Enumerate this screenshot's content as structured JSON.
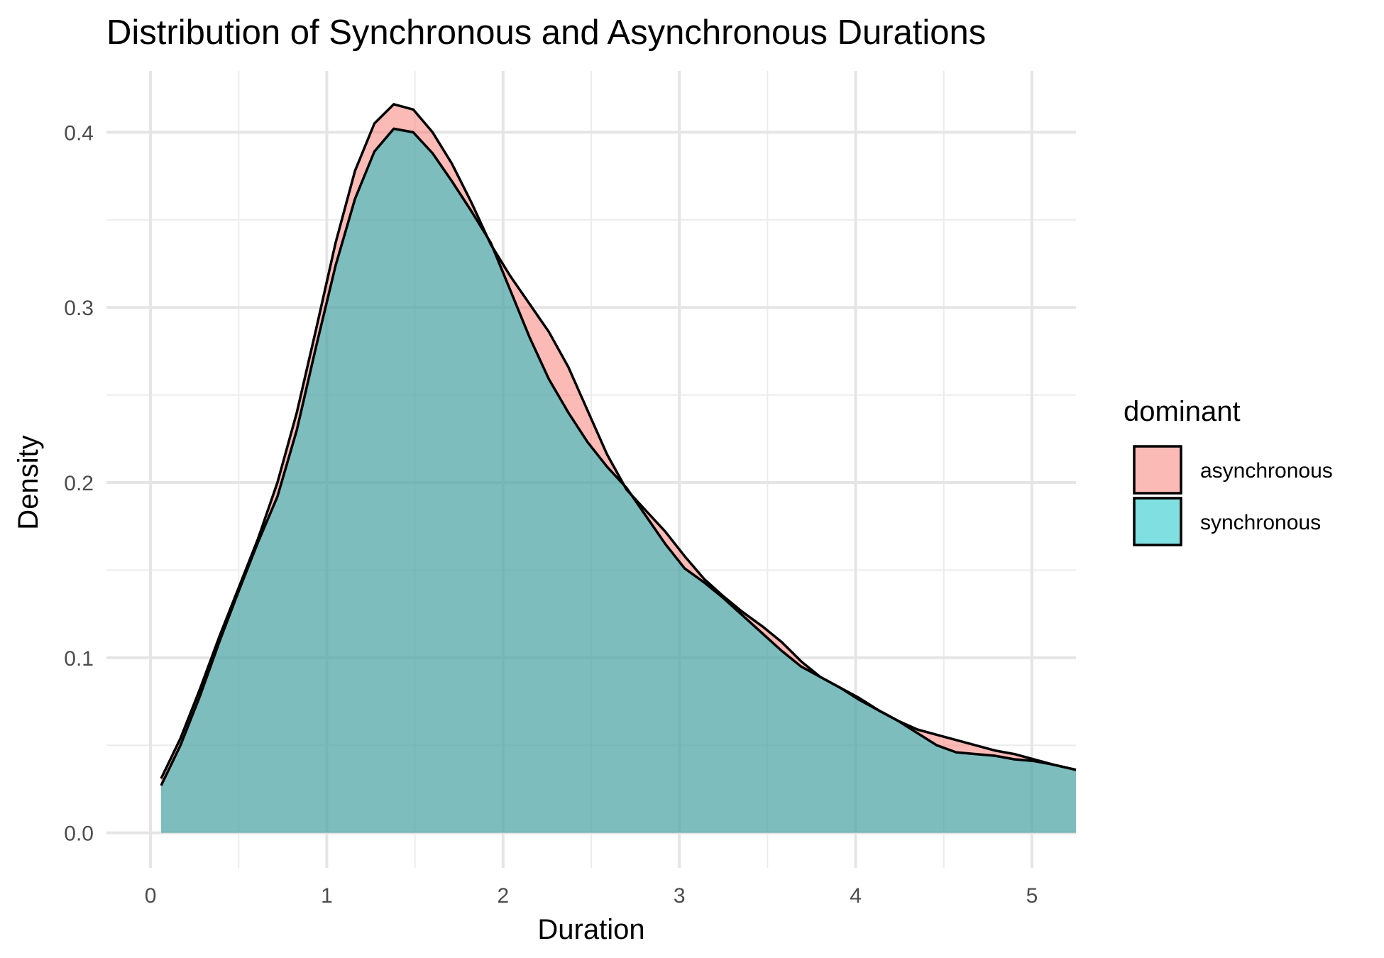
{
  "chart_data": {
    "type": "area",
    "title": "Distribution of Synchronous and Asynchronous Durations",
    "xlabel": "Duration",
    "ylabel": "Density",
    "xlim": [
      -0.25,
      5.25
    ],
    "ylim": [
      -0.02,
      0.435
    ],
    "x_ticks": [
      0,
      1,
      2,
      3,
      4,
      5
    ],
    "x_tick_labels": [
      "0",
      "1",
      "2",
      "3",
      "4",
      "5"
    ],
    "y_ticks": [
      0.0,
      0.1,
      0.2,
      0.3,
      0.4
    ],
    "y_tick_labels": [
      "0.0",
      "0.1",
      "0.2",
      "0.3",
      "0.4"
    ],
    "grid": true,
    "legend": {
      "title": "dominant",
      "placement": "right"
    },
    "series": [
      {
        "name": "asynchronous",
        "color": "#F8766D",
        "x": [
          0.06,
          0.17,
          0.28,
          0.39,
          0.5,
          0.61,
          0.72,
          0.83,
          0.94,
          1.05,
          1.16,
          1.27,
          1.38,
          1.49,
          1.6,
          1.71,
          1.82,
          1.93,
          2.04,
          2.15,
          2.26,
          2.37,
          2.48,
          2.59,
          2.7,
          2.81,
          2.92,
          3.03,
          3.14,
          3.25,
          3.36,
          3.47,
          3.58,
          3.69,
          3.8,
          3.91,
          4.02,
          4.13,
          4.24,
          4.35,
          4.46,
          4.57,
          4.68,
          4.79,
          4.9,
          5.01,
          5.12,
          5.25
        ],
        "values": [
          0.031,
          0.054,
          0.082,
          0.112,
          0.14,
          0.168,
          0.2,
          0.24,
          0.288,
          0.337,
          0.378,
          0.405,
          0.416,
          0.413,
          0.4,
          0.382,
          0.36,
          0.336,
          0.318,
          0.302,
          0.286,
          0.266,
          0.241,
          0.216,
          0.196,
          0.184,
          0.172,
          0.158,
          0.145,
          0.135,
          0.126,
          0.118,
          0.109,
          0.098,
          0.089,
          0.083,
          0.077,
          0.07,
          0.064,
          0.059,
          0.056,
          0.053,
          0.05,
          0.047,
          0.045,
          0.042,
          0.039,
          0.036
        ]
      },
      {
        "name": "synchronous",
        "color": "#00BFC4",
        "x": [
          0.06,
          0.17,
          0.28,
          0.39,
          0.5,
          0.61,
          0.72,
          0.83,
          0.94,
          1.05,
          1.16,
          1.27,
          1.38,
          1.49,
          1.6,
          1.71,
          1.82,
          1.93,
          2.04,
          2.15,
          2.26,
          2.37,
          2.48,
          2.59,
          2.7,
          2.81,
          2.92,
          3.03,
          3.14,
          3.25,
          3.36,
          3.47,
          3.58,
          3.69,
          3.8,
          3.91,
          4.02,
          4.13,
          4.24,
          4.35,
          4.46,
          4.57,
          4.68,
          4.79,
          4.9,
          5.01,
          5.12,
          5.25
        ],
        "values": [
          0.027,
          0.05,
          0.078,
          0.109,
          0.138,
          0.166,
          0.192,
          0.23,
          0.278,
          0.324,
          0.362,
          0.389,
          0.402,
          0.4,
          0.388,
          0.372,
          0.355,
          0.337,
          0.31,
          0.283,
          0.259,
          0.24,
          0.223,
          0.209,
          0.197,
          0.181,
          0.165,
          0.151,
          0.143,
          0.134,
          0.124,
          0.114,
          0.104,
          0.095,
          0.089,
          0.083,
          0.076,
          0.07,
          0.064,
          0.057,
          0.05,
          0.046,
          0.045,
          0.044,
          0.042,
          0.041,
          0.039,
          0.036
        ]
      }
    ]
  }
}
